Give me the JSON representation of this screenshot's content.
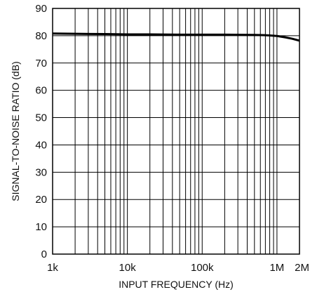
{
  "chart_data": {
    "type": "line",
    "title": "",
    "xlabel": "INPUT FREQUENCY (Hz)",
    "ylabel": "SIGNAL-TO-NOISE RATIO (dB)",
    "x_scale": "log",
    "xlim": [
      1000,
      2000000
    ],
    "ylim": [
      0,
      90
    ],
    "grid": true,
    "y_ticks": [
      {
        "value": 0,
        "label": "0"
      },
      {
        "value": 10,
        "label": "10"
      },
      {
        "value": 20,
        "label": "20"
      },
      {
        "value": 30,
        "label": "30"
      },
      {
        "value": 40,
        "label": "40"
      },
      {
        "value": 50,
        "label": "50"
      },
      {
        "value": 60,
        "label": "60"
      },
      {
        "value": 70,
        "label": "70"
      },
      {
        "value": 80,
        "label": "80"
      },
      {
        "value": 90,
        "label": "90"
      }
    ],
    "x_ticks": [
      {
        "value": 1000,
        "label": "1k"
      },
      {
        "value": 10000,
        "label": "10k"
      },
      {
        "value": 100000,
        "label": "100k"
      },
      {
        "value": 1000000,
        "label": "1M"
      },
      {
        "value": 2000000,
        "label": "2M"
      }
    ],
    "series": [
      {
        "x": [
          1000,
          2000,
          5000,
          10000,
          20000,
          50000,
          100000,
          200000,
          500000,
          700000,
          1000000,
          1300000,
          1600000,
          2000000
        ],
        "y": [
          80.8,
          80.7,
          80.6,
          80.5,
          80.5,
          80.4,
          80.4,
          80.4,
          80.3,
          80.2,
          79.9,
          79.4,
          78.9,
          78.2
        ]
      }
    ]
  }
}
